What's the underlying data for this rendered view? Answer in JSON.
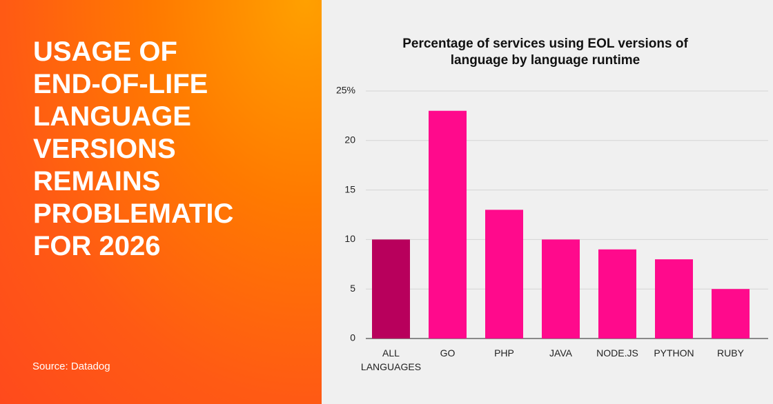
{
  "headline": "USAGE OF END-OF-LIFE LANGUAGE VERSIONS REMAINS PROBLEMATIC FOR 2026",
  "source": "Source: Datadog",
  "chart_data": {
    "type": "bar",
    "title": "Percentage of services using EOL versions of language by language runtime",
    "categories": [
      "ALL LANGUAGES",
      "GO",
      "PHP",
      "JAVA",
      "NODE.JS",
      "PYTHON",
      "RUBY"
    ],
    "values": [
      10,
      23,
      13,
      10,
      9,
      8,
      5
    ],
    "colors": [
      "#b8005c",
      "#ff0a8c",
      "#ff0a8c",
      "#ff0a8c",
      "#ff0a8c",
      "#ff0a8c",
      "#ff0a8c"
    ],
    "ylim": [
      0,
      25
    ],
    "yticks": [
      0,
      5,
      10,
      15,
      20,
      {
        "value": 25,
        "label": "25%"
      }
    ],
    "grid": true
  }
}
